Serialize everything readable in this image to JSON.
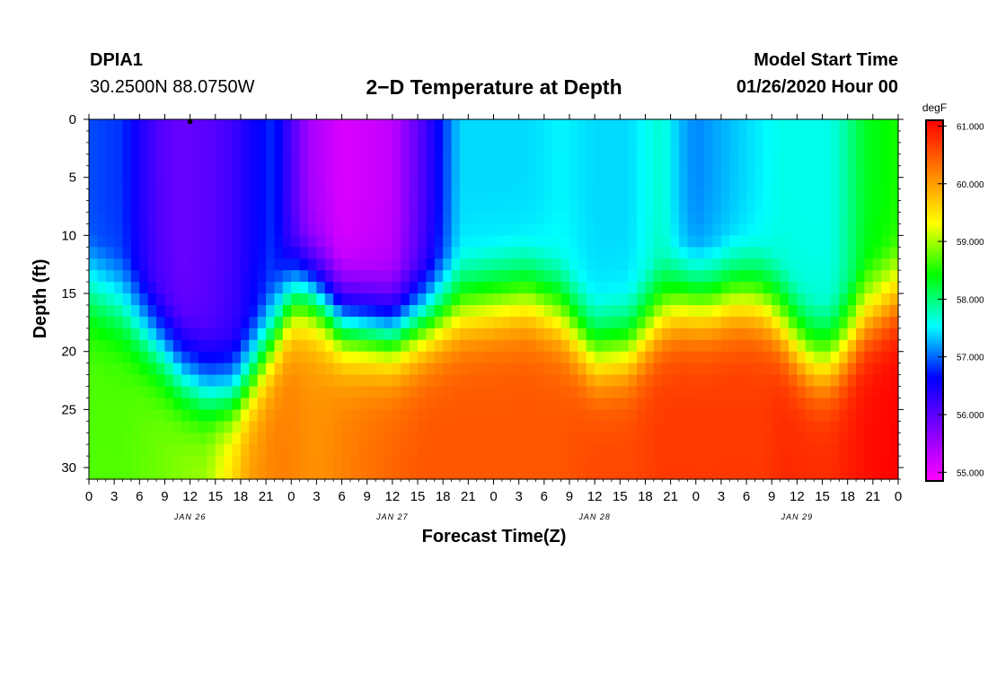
{
  "header": {
    "station_id": "DPIA1",
    "coords": "30.2500N 88.0750W",
    "title": "2−D Temperature at Depth",
    "start_label": "Model Start Time",
    "start_value": "01/26/2020 Hour 00"
  },
  "chart_data": {
    "type": "heatmap",
    "title": "2−D Temperature at Depth",
    "xlabel": "Forecast Time(Z)",
    "ylabel": "Depth (ft)",
    "x_hours": [
      0,
      96
    ],
    "x_tick_labels": [
      "0",
      "3",
      "6",
      "9",
      "12",
      "15",
      "18",
      "21",
      "0",
      "3",
      "6",
      "9",
      "12",
      "15",
      "18",
      "21",
      "0",
      "3",
      "6",
      "9",
      "12",
      "15",
      "18",
      "21",
      "0",
      "3",
      "6",
      "9",
      "12",
      "15",
      "18",
      "21",
      "0"
    ],
    "date_labels": [
      {
        "text": "JAN 26",
        "hour": 12
      },
      {
        "text": "JAN 27",
        "hour": 36
      },
      {
        "text": "JAN 28",
        "hour": 60
      },
      {
        "text": "JAN 29",
        "hour": 84
      }
    ],
    "ylim": [
      0,
      31
    ],
    "y_ticks": [
      0,
      5,
      10,
      15,
      20,
      25,
      30
    ],
    "colorbar": {
      "unit": "degF",
      "min": 54.85,
      "max": 61.1,
      "tick_labels": [
        "61.000",
        "60.000",
        "59.000",
        "58.000",
        "57.000",
        "56.000",
        "55.000"
      ],
      "tick_values": [
        61,
        60,
        59,
        58,
        57,
        56,
        55
      ],
      "colors": [
        "#ff00ff",
        "#8000ff",
        "#0000ff",
        "#00ffff",
        "#00ff00",
        "#ffff00",
        "#ff8000",
        "#ff0000"
      ]
    },
    "profiles": {
      "hours": [
        0,
        4,
        8,
        11,
        14,
        17,
        19,
        22,
        24,
        26,
        28,
        30,
        33,
        36,
        40,
        44,
        48,
        52,
        56,
        60,
        64,
        68,
        70,
        72,
        74,
        76,
        78,
        80,
        82,
        84,
        86,
        88,
        90,
        92,
        96
      ],
      "surface": [
        56.9,
        56.8,
        56.1,
        55.9,
        56.0,
        56.2,
        56.5,
        56.8,
        56.1,
        55.5,
        55.3,
        55.1,
        55.2,
        55.3,
        56.2,
        57.4,
        57.4,
        57.4,
        57.5,
        57.4,
        57.4,
        57.7,
        57.3,
        57.1,
        57.2,
        57.3,
        57.4,
        57.5,
        57.6,
        57.6,
        57.6,
        57.6,
        57.9,
        58.3,
        58.5
      ],
      "thermo_top": [
        13.0,
        13.0,
        13.0,
        13.0,
        13.5,
        14.0,
        14.5,
        14.0,
        13.0,
        12.0,
        11.5,
        12.0,
        14.0,
        15.0,
        15.0,
        15.0,
        15.0,
        15.0,
        15.0,
        15.0,
        15.0,
        15.0,
        15.0,
        15.0,
        15.0,
        15.0,
        15.0,
        15.0,
        15.0,
        15.0,
        15.0,
        15.0,
        15.0,
        15.0,
        15.0
      ],
      "thermo_depth": [
        16.0,
        17.5,
        20.0,
        22.5,
        24.0,
        24.5,
        23.0,
        19.5,
        16.0,
        15.5,
        16.5,
        18.0,
        18.5,
        19.0,
        18.0,
        17.0,
        16.5,
        16.0,
        17.5,
        21.0,
        20.5,
        17.5,
        16.5,
        16.5,
        16.5,
        16.0,
        16.0,
        16.5,
        18.0,
        20.0,
        21.5,
        21.5,
        20.0,
        18.0,
        16.0
      ],
      "bottom": [
        58.7,
        58.7,
        58.8,
        58.9,
        59.0,
        59.6,
        60.0,
        60.2,
        60.2,
        60.1,
        60.1,
        60.2,
        60.3,
        60.4,
        60.5,
        60.5,
        60.5,
        60.5,
        60.5,
        60.6,
        60.6,
        60.7,
        60.7,
        60.7,
        60.7,
        60.7,
        60.7,
        60.7,
        60.8,
        60.8,
        60.8,
        60.8,
        60.9,
        61.0,
        61.1
      ]
    }
  }
}
